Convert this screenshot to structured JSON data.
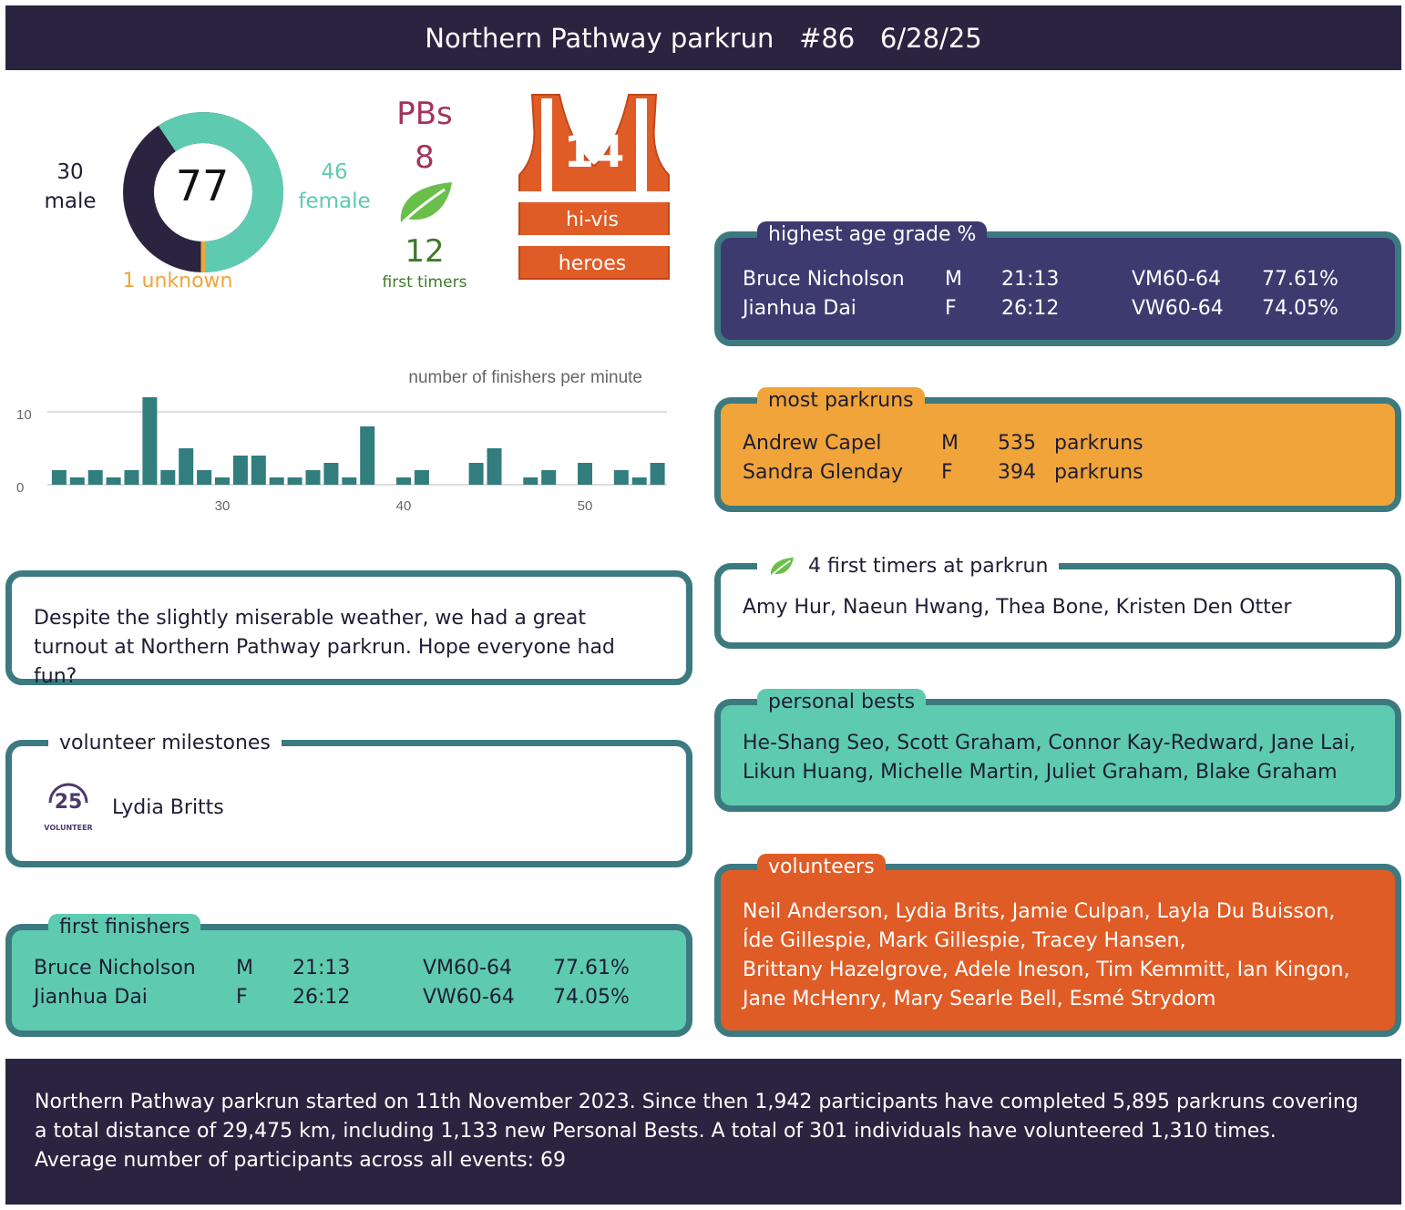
{
  "header": {
    "event_name": "Northern Pathway parkrun",
    "event_number": "#86",
    "date": "6/28/25"
  },
  "finishers": {
    "total": "77",
    "male_count": "30",
    "male_label": "male",
    "female_count": "46",
    "female_label": "female",
    "unknown": "1 unknown",
    "colors": {
      "male": "#2b2440",
      "female": "#5ecbb0",
      "unknown": "#f0a43a"
    }
  },
  "pbs": {
    "label": "PBs",
    "count": "8"
  },
  "first_timers_stat": {
    "count": "12",
    "label": "first timers"
  },
  "hivis": {
    "count": "14",
    "line1": "hi-vis",
    "line2": "heroes"
  },
  "chart_data": {
    "type": "bar",
    "title": "number of finishers per minute",
    "xlabel": "",
    "ylabel": "",
    "x_ticks": [
      "30",
      "40",
      "50"
    ],
    "y_ticks": [
      "0",
      "10"
    ],
    "ylim": [
      0,
      12
    ],
    "x": [
      21,
      22,
      23,
      24,
      25,
      26,
      27,
      28,
      29,
      30,
      31,
      32,
      33,
      34,
      35,
      36,
      37,
      38,
      39,
      40,
      41,
      42,
      43,
      44,
      45,
      46,
      47,
      48,
      49,
      50,
      51,
      52,
      53,
      54
    ],
    "values": [
      2,
      1,
      2,
      1,
      2,
      12,
      2,
      5,
      2,
      1,
      4,
      4,
      1,
      1,
      2,
      3,
      1,
      8,
      0,
      1,
      2,
      0,
      0,
      3,
      5,
      0,
      1,
      2,
      0,
      3,
      0,
      2,
      1,
      3
    ],
    "color": "#327d7d"
  },
  "report": {
    "text": "Despite the slightly miserable weather, we had a great turnout at Northern Pathway parkrun. Hope everyone had fun?"
  },
  "volunteer_milestones": {
    "title": "volunteer milestones",
    "badge_number": "25",
    "badge_text": "VOLUNTEER",
    "name": "Lydia Britts"
  },
  "first_finishers": {
    "title": "first finishers",
    "rows": [
      {
        "name": "Bruce Nicholson",
        "gender": "M",
        "time": "21:13",
        "category": "VM60-64",
        "grade": "77.61%"
      },
      {
        "name": "Jianhua Dai",
        "gender": "F",
        "time": "26:12",
        "category": "VW60-64",
        "grade": "74.05%"
      }
    ]
  },
  "age_grade": {
    "title": "highest age grade %",
    "rows": [
      {
        "name": "Bruce Nicholson",
        "gender": "M",
        "time": "21:13",
        "category": "VM60-64",
        "grade": "77.61%"
      },
      {
        "name": "Jianhua Dai",
        "gender": "F",
        "time": "26:12",
        "category": "VW60-64",
        "grade": "74.05%"
      }
    ]
  },
  "most_parkruns": {
    "title": "most parkruns",
    "rows": [
      {
        "name": "Andrew Capel",
        "gender": "M",
        "count": "535",
        "unit": "parkruns"
      },
      {
        "name": "Sandra Glenday",
        "gender": "F",
        "count": "394",
        "unit": "parkruns"
      }
    ]
  },
  "first_timers": {
    "title": "4 first timers at parkrun",
    "names": "Amy Hur, Naeun Hwang, Thea Bone, Kristen Den Otter"
  },
  "personal_bests": {
    "title": "personal bests",
    "line1": "He-Shang Seo, Scott Graham, Connor Kay-Redward, Jane Lai,",
    "line2": "Likun Huang, Michelle Martin, Juliet Graham, Blake Graham"
  },
  "volunteers": {
    "title": "volunteers",
    "line1": "Neil Anderson, Lydia Brits, Jamie Culpan, Layla Du Buisson,",
    "line2": "Íde Gillespie, Mark Gillespie, Tracey Hansen,",
    "line3": "Brittany Hazelgrove, Adele Ineson, Tim Kemmitt, Ian Kingon,",
    "line4": "Jane McHenry, Mary Searle Bell, Esmé Strydom"
  },
  "footer": {
    "text": "Northern Pathway parkrun started on 11th November 2023. Since then 1,942 participants have completed 5,895 parkruns covering a total distance of 29,475 km, including 1,133 new Personal Bests. A total of 301 individuals have volunteered 1,310 times. Average number of participants across all events: 69"
  }
}
